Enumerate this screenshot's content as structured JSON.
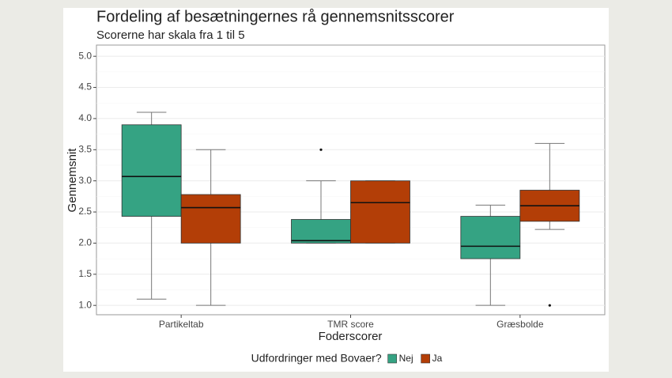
{
  "chart_data": {
    "type": "boxplot",
    "title": "Fordeling af besætningernes rå gennemsnitsscorer",
    "subtitle": "Scorerne har skala fra 1 til 5",
    "x_label": "Foderscorer",
    "y_label": "Gennemsnit",
    "legend_title": "Udfordringer med Bovaer?",
    "legend_position": "bottom",
    "grid": true,
    "categories": [
      "Partikeltab",
      "TMR score",
      "Græsbolde"
    ],
    "ylim": [
      0.85,
      5.18
    ],
    "yticks": [
      {
        "value": 1,
        "label": "1.0"
      },
      {
        "value": 1.5,
        "label": "1.5"
      },
      {
        "value": 2,
        "label": "2.0"
      },
      {
        "value": 2.5,
        "label": "2.5"
      },
      {
        "value": 3,
        "label": "3.0"
      },
      {
        "value": 3.5,
        "label": "3.5"
      },
      {
        "value": 4,
        "label": "4.0"
      },
      {
        "value": 4.5,
        "label": "4.5"
      },
      {
        "value": 5,
        "label": "5.0"
      }
    ],
    "series": [
      {
        "name": "Nej",
        "color": "#35a383",
        "boxes": [
          {
            "min": 1.1,
            "q1": 2.43,
            "median": 3.07,
            "q3": 3.9,
            "max": 4.1
          },
          {
            "min": 2.0,
            "q1": 2.0,
            "median": 2.04,
            "q3": 2.38,
            "max": 3.0,
            "outliers": [
              3.5
            ]
          },
          {
            "min": 1.0,
            "q1": 1.75,
            "median": 1.95,
            "q3": 2.43,
            "max": 2.61
          }
        ]
      },
      {
        "name": "Ja",
        "color": "#b33e07",
        "boxes": [
          {
            "min": 1.0,
            "q1": 2.0,
            "median": 2.57,
            "q3": 2.78,
            "max": 3.5
          },
          {
            "min": 2.0,
            "q1": 2.0,
            "median": 2.65,
            "q3": 3.0,
            "max": 3.0
          },
          {
            "min": 2.22,
            "q1": 2.35,
            "median": 2.6,
            "q3": 2.85,
            "max": 3.6,
            "outliers": [
              1.0
            ]
          }
        ]
      }
    ]
  }
}
